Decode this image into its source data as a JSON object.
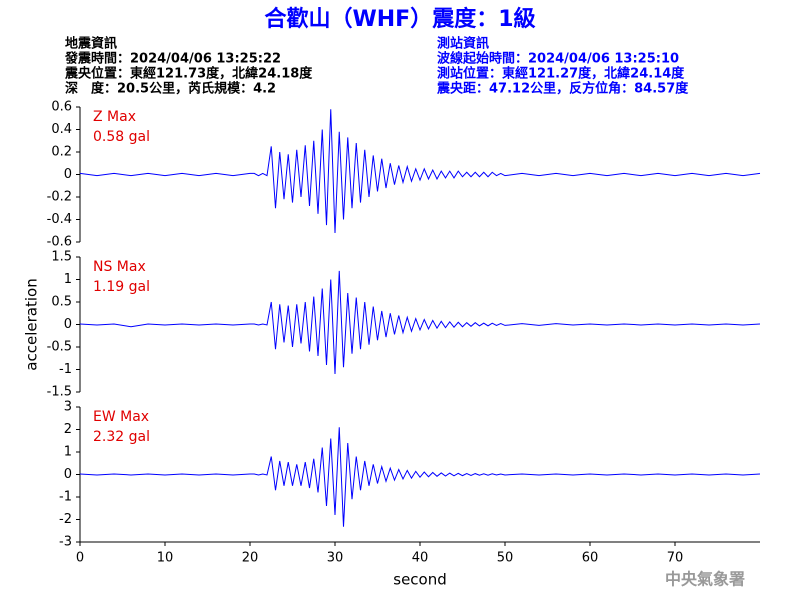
{
  "header": {
    "title": "合歡山（WHF）震度：1級",
    "left": [
      "地震資訊",
      "發震時間：2024/04/06 13:25:22",
      "震央位置：東經121.73度，北緯24.18度",
      "深　度：20.5公里，芮氏規模：4.2"
    ],
    "right": [
      "測站資訊",
      "波線起始時間：2024/04/06 13:25:10",
      "測站位置：東經121.27度，北緯24.14度",
      "震央距：47.12公里，反方位角：84.57度"
    ]
  },
  "footer": "中央氣象署",
  "chart_data": [
    {
      "type": "line",
      "annotations": [
        "Z Max",
        "0.58 gal"
      ],
      "xlim": [
        0,
        80
      ],
      "ylim": [
        -0.6,
        0.6
      ],
      "yticks": [
        0.6,
        0.4,
        0.2,
        0,
        -0.2,
        -0.4,
        -0.6
      ],
      "x": [
        0,
        2,
        4,
        6,
        8,
        10,
        12,
        14,
        16,
        18,
        20,
        20.5,
        21,
        21.5,
        22,
        22.5,
        23,
        23.5,
        24,
        24.5,
        25,
        25.5,
        26,
        26.5,
        27,
        27.5,
        28,
        28.5,
        29,
        29.5,
        30,
        30.5,
        31,
        31.5,
        32,
        32.5,
        33,
        33.5,
        34,
        34.5,
        35,
        35.5,
        36,
        36.5,
        37,
        37.5,
        38,
        38.5,
        39,
        39.5,
        40,
        40.5,
        41,
        41.5,
        42,
        42.5,
        43,
        43.5,
        44,
        44.5,
        45,
        45.5,
        46,
        46.5,
        47,
        47.5,
        48,
        48.5,
        49,
        49.5,
        50,
        52,
        54,
        56,
        58,
        60,
        62,
        64,
        66,
        68,
        70,
        72,
        74,
        76,
        78,
        80
      ],
      "series": [
        {
          "color": "#0000ff",
          "values": [
            0.01,
            -0.01,
            0.01,
            -0.01,
            0.01,
            -0.01,
            0.01,
            -0.01,
            0.01,
            -0.01,
            0.01,
            0.01,
            -0.01,
            0.01,
            -0.01,
            0.25,
            -0.3,
            0.2,
            -0.22,
            0.18,
            -0.25,
            0.22,
            -0.2,
            0.26,
            -0.28,
            0.3,
            -0.35,
            0.4,
            -0.45,
            0.58,
            -0.52,
            0.38,
            -0.4,
            0.33,
            -0.3,
            0.28,
            -0.25,
            0.22,
            -0.2,
            0.17,
            -0.15,
            0.14,
            -0.12,
            0.1,
            -0.09,
            0.08,
            -0.07,
            0.07,
            -0.06,
            0.05,
            -0.05,
            0.05,
            -0.04,
            0.04,
            -0.04,
            0.03,
            -0.03,
            0.03,
            -0.03,
            0.03,
            -0.02,
            0.02,
            -0.02,
            0.02,
            -0.02,
            0.02,
            -0.02,
            0.02,
            -0.01,
            0.01,
            -0.01,
            0.01,
            -0.01,
            0.01,
            -0.01,
            0.01,
            -0.01,
            0.01,
            -0.01,
            0.01,
            -0.01,
            0.01,
            -0.01,
            0.01,
            -0.01,
            0.01
          ]
        }
      ]
    },
    {
      "type": "line",
      "annotations": [
        "NS Max",
        "1.19 gal"
      ],
      "ylabel": "acceleration",
      "xlim": [
        0,
        80
      ],
      "ylim": [
        -1.5,
        1.5
      ],
      "yticks": [
        1.5,
        1,
        0.5,
        0,
        -0.5,
        -1,
        -1.5
      ],
      "x": [
        0,
        2,
        4,
        6,
        8,
        10,
        12,
        14,
        16,
        18,
        20,
        20.5,
        21,
        21.5,
        22,
        22.5,
        23,
        23.5,
        24,
        24.5,
        25,
        25.5,
        26,
        26.5,
        27,
        27.5,
        28,
        28.5,
        29,
        29.5,
        30,
        30.5,
        31,
        31.5,
        32,
        32.5,
        33,
        33.5,
        34,
        34.5,
        35,
        35.5,
        36,
        36.5,
        37,
        37.5,
        38,
        38.5,
        39,
        39.5,
        40,
        40.5,
        41,
        41.5,
        42,
        42.5,
        43,
        43.5,
        44,
        44.5,
        45,
        45.5,
        46,
        46.5,
        47,
        47.5,
        48,
        48.5,
        49,
        49.5,
        50,
        52,
        54,
        56,
        58,
        60,
        62,
        64,
        66,
        68,
        70,
        72,
        74,
        76,
        78,
        80
      ],
      "series": [
        {
          "color": "#0000ff",
          "values": [
            0.01,
            -0.01,
            0.01,
            -0.05,
            0.01,
            -0.01,
            0.01,
            -0.01,
            0.01,
            -0.01,
            0.01,
            0.01,
            -0.01,
            0.01,
            -0.01,
            0.5,
            -0.55,
            0.45,
            -0.4,
            0.42,
            -0.5,
            0.45,
            -0.42,
            0.5,
            -0.6,
            0.62,
            -0.7,
            0.8,
            -0.9,
            1.0,
            -1.1,
            1.19,
            -0.95,
            0.7,
            -0.65,
            0.6,
            -0.55,
            0.5,
            -0.45,
            0.4,
            -0.35,
            0.3,
            -0.28,
            0.25,
            -0.22,
            0.2,
            -0.18,
            0.16,
            -0.15,
            0.13,
            -0.12,
            0.11,
            -0.1,
            0.09,
            -0.08,
            0.07,
            -0.07,
            0.06,
            -0.06,
            0.05,
            -0.05,
            0.04,
            -0.04,
            0.04,
            -0.03,
            0.03,
            -0.03,
            0.03,
            -0.02,
            0.02,
            -0.02,
            0.02,
            -0.02,
            0.02,
            -0.01,
            0.01,
            -0.01,
            0.01,
            -0.01,
            0.01,
            -0.01,
            0.01,
            -0.01,
            0.01,
            -0.01,
            0.01
          ]
        }
      ]
    },
    {
      "type": "line",
      "annotations": [
        "EW Max",
        "2.32 gal"
      ],
      "xlabel": "second",
      "xlim": [
        0,
        80
      ],
      "xticks": [
        0,
        10,
        20,
        30,
        40,
        50,
        60,
        70
      ],
      "ylim": [
        -3,
        3
      ],
      "yticks": [
        3,
        2,
        1,
        0,
        -1,
        -2,
        -3
      ],
      "x": [
        0,
        2,
        4,
        6,
        8,
        10,
        12,
        14,
        16,
        18,
        20,
        20.5,
        21,
        21.5,
        22,
        22.5,
        23,
        23.5,
        24,
        24.5,
        25,
        25.5,
        26,
        26.5,
        27,
        27.5,
        28,
        28.5,
        29,
        29.5,
        30,
        30.5,
        31,
        31.5,
        32,
        32.5,
        33,
        33.5,
        34,
        34.5,
        35,
        35.5,
        36,
        36.5,
        37,
        37.5,
        38,
        38.5,
        39,
        39.5,
        40,
        40.5,
        41,
        41.5,
        42,
        42.5,
        43,
        43.5,
        44,
        44.5,
        45,
        45.5,
        46,
        46.5,
        47,
        47.5,
        48,
        48.5,
        49,
        49.5,
        50,
        52,
        54,
        56,
        58,
        60,
        62,
        64,
        66,
        68,
        70,
        72,
        74,
        76,
        78,
        80
      ],
      "series": [
        {
          "color": "#0000ff",
          "values": [
            0.02,
            -0.02,
            0.02,
            -0.02,
            0.02,
            -0.02,
            0.02,
            -0.02,
            0.02,
            -0.02,
            0.02,
            0.02,
            -0.02,
            0.02,
            -0.02,
            0.8,
            -0.7,
            0.6,
            -0.5,
            0.55,
            -0.5,
            0.45,
            -0.5,
            0.55,
            -0.6,
            0.7,
            -0.8,
            1.2,
            -1.4,
            1.6,
            -1.8,
            2.1,
            -2.32,
            1.4,
            -1.1,
            0.8,
            -0.7,
            0.6,
            -0.5,
            0.45,
            -0.4,
            0.35,
            -0.3,
            0.28,
            -0.25,
            0.22,
            -0.2,
            0.18,
            -0.16,
            0.14,
            -0.12,
            0.11,
            -0.1,
            0.09,
            -0.08,
            0.07,
            -0.07,
            0.06,
            -0.06,
            0.05,
            -0.05,
            0.04,
            -0.04,
            0.04,
            -0.03,
            0.03,
            -0.03,
            0.03,
            -0.02,
            0.02,
            -0.02,
            0.02,
            -0.02,
            0.02,
            -0.02,
            0.02,
            -0.02,
            0.02,
            -0.02,
            0.02,
            -0.02,
            0.02,
            -0.02,
            0.02,
            -0.02,
            0.02
          ]
        }
      ]
    }
  ]
}
